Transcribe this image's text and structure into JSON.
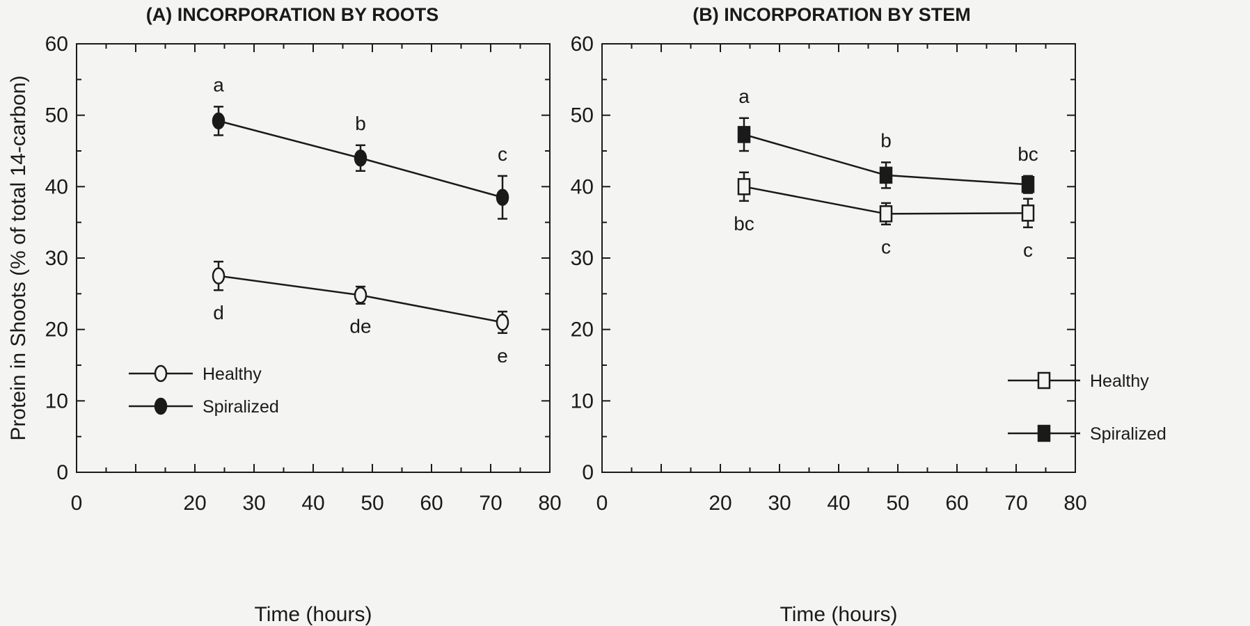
{
  "chart_data": [
    {
      "type": "line",
      "title": "(A) INCORPORATION BY ROOTS",
      "xlabel": "Time  (hours)",
      "ylabel": "Protein in Shoots  (% of total 14-carbon)",
      "xlim": [
        0,
        80
      ],
      "ylim": [
        0,
        60
      ],
      "xticks": [
        "0",
        "20",
        "30",
        "40",
        "50",
        "60",
        "70",
        "80"
      ],
      "yticks": [
        "0",
        "10",
        "20",
        "30",
        "40",
        "50",
        "60"
      ],
      "grid": false,
      "legend_position": "bottom-left",
      "series": [
        {
          "name": "Healthy",
          "marker": "open-circle",
          "x": [
            24,
            48,
            72
          ],
          "y": [
            27.5,
            24.8,
            21
          ],
          "err": [
            2,
            1.2,
            1.5
          ],
          "letters": [
            "d",
            "de",
            "e"
          ],
          "letter_pos": [
            "below",
            "below",
            "below"
          ]
        },
        {
          "name": "Spiralized",
          "marker": "filled-circle",
          "x": [
            24,
            48,
            72
          ],
          "y": [
            49.2,
            44,
            38.5
          ],
          "err": [
            2,
            1.8,
            3
          ],
          "letters": [
            "a",
            "b",
            "c"
          ],
          "letter_pos": [
            "above",
            "above",
            "above"
          ]
        }
      ]
    },
    {
      "type": "line",
      "title": "(B) INCORPORATION BY STEM",
      "xlabel": "Time  (hours)",
      "ylabel": "",
      "xlim": [
        0,
        80
      ],
      "ylim": [
        0,
        60
      ],
      "xticks": [
        "0",
        "20",
        "30",
        "40",
        "50",
        "60",
        "70",
        "80"
      ],
      "yticks": [
        "0",
        "10",
        "20",
        "30",
        "40",
        "50",
        "60"
      ],
      "grid": false,
      "legend_position": "right",
      "series": [
        {
          "name": "Healthy",
          "marker": "open-square",
          "x": [
            24,
            48,
            72
          ],
          "y": [
            40,
            36.2,
            36.3
          ],
          "err": [
            2,
            1.5,
            2
          ],
          "letters": [
            "bc",
            "c",
            "c"
          ],
          "letter_pos": [
            "below",
            "below",
            "below"
          ]
        },
        {
          "name": "Spiralized",
          "marker": "filled-square",
          "x": [
            24,
            48,
            72
          ],
          "y": [
            47.3,
            41.6,
            40.3
          ],
          "err": [
            2.3,
            1.8,
            1.2
          ],
          "letters": [
            "a",
            "b",
            "bc"
          ],
          "letter_pos": [
            "above",
            "above",
            "above"
          ]
        }
      ]
    }
  ]
}
